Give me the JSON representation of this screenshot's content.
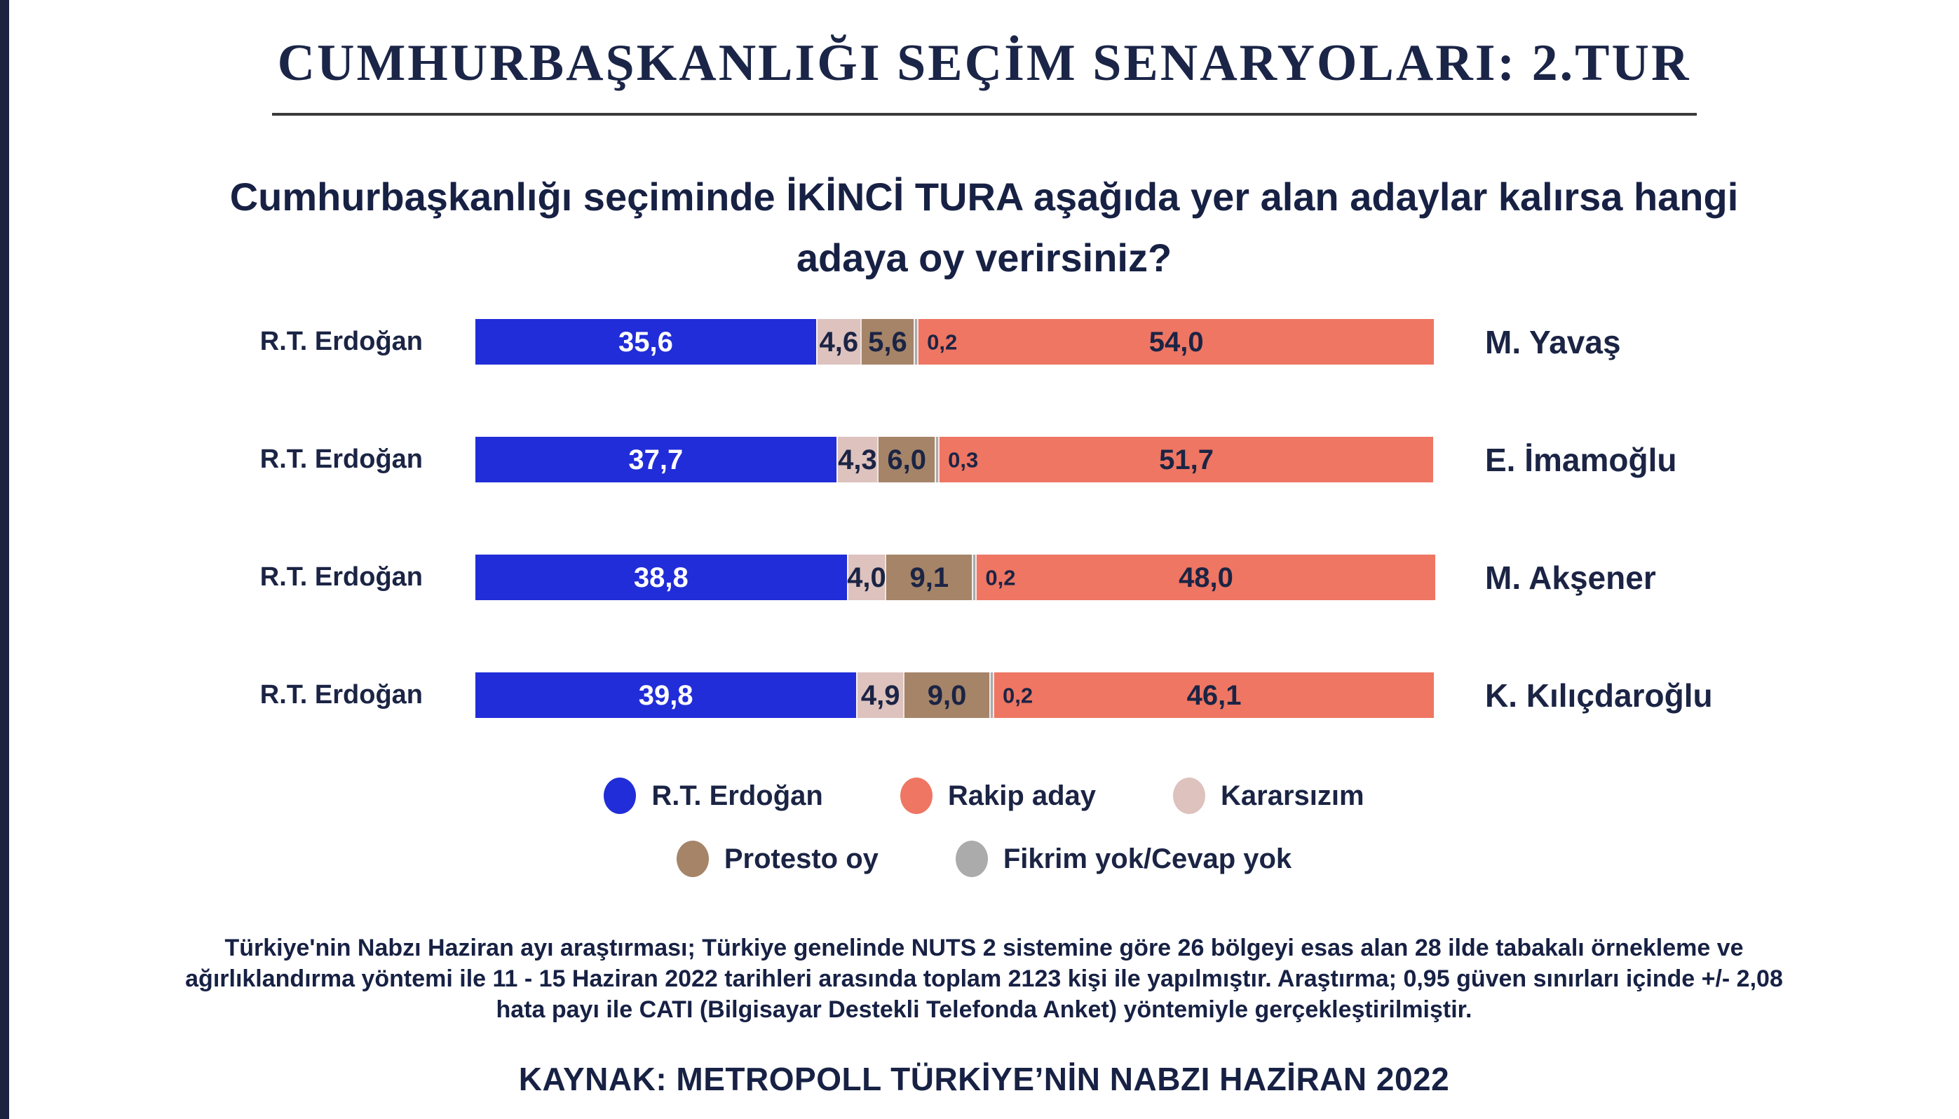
{
  "page": {
    "title": "CUMHURBAŞKANLIĞI SEÇİM SENARYOLARI: 2.TUR",
    "accent_color": "#1b2340",
    "text_color": "#1b2444"
  },
  "chart_data": {
    "type": "bar",
    "orientation": "horizontal",
    "stacked": true,
    "units": "%",
    "title": "Cumhurbaşkanlığı seçiminde İKİNCİ TURA aşağıda yer alan adaylar kalırsa hangi adaya oy verirsiniz?",
    "xlim": [
      0,
      100
    ],
    "grid": false,
    "legend_position": "bottom",
    "palette": {
      "erdogan": "#212dd8",
      "rakip": "#ee7663",
      "kararsiz": "#ddc2be",
      "protesto": "#a58468",
      "fikrim_yok": "#ababab"
    },
    "legend": [
      {
        "key": "erdogan",
        "label": "R.T. Erdoğan"
      },
      {
        "key": "rakip",
        "label": "Rakip aday"
      },
      {
        "key": "kararsiz",
        "label": "Kararsızım"
      },
      {
        "key": "protesto",
        "label": "Protesto oy"
      },
      {
        "key": "fikrim_yok",
        "label": "Fikrim yok/Cevap yok"
      }
    ],
    "legend_rows": [
      [
        0,
        1,
        2
      ],
      [
        3,
        4
      ]
    ],
    "rows": [
      {
        "left_label": "R.T. Erdoğan",
        "right_label": "M. Yavaş",
        "segments": [
          {
            "key": "erdogan",
            "value": 35.6,
            "display": "35,6"
          },
          {
            "key": "kararsiz",
            "value": 4.6,
            "display": "4,6"
          },
          {
            "key": "protesto",
            "value": 5.6,
            "display": "5,6"
          },
          {
            "key": "fikrim_yok",
            "value": 0.2,
            "display": "0,2"
          },
          {
            "key": "rakip",
            "value": 54.0,
            "display": "54,0"
          }
        ]
      },
      {
        "left_label": "R.T. Erdoğan",
        "right_label": "E. İmamoğlu",
        "segments": [
          {
            "key": "erdogan",
            "value": 37.7,
            "display": "37,7"
          },
          {
            "key": "kararsiz",
            "value": 4.3,
            "display": "4,3"
          },
          {
            "key": "protesto",
            "value": 6.0,
            "display": "6,0"
          },
          {
            "key": "fikrim_yok",
            "value": 0.3,
            "display": "0,3"
          },
          {
            "key": "rakip",
            "value": 51.7,
            "display": "51,7"
          }
        ]
      },
      {
        "left_label": "R.T. Erdoğan",
        "right_label": "M. Akşener",
        "segments": [
          {
            "key": "erdogan",
            "value": 38.8,
            "display": "38,8"
          },
          {
            "key": "kararsiz",
            "value": 4.0,
            "display": "4,0"
          },
          {
            "key": "protesto",
            "value": 9.1,
            "display": "9,1"
          },
          {
            "key": "fikrim_yok",
            "value": 0.2,
            "display": "0,2"
          },
          {
            "key": "rakip",
            "value": 48.0,
            "display": "48,0"
          }
        ]
      },
      {
        "left_label": "R.T. Erdoğan",
        "right_label": "K. Kılıçdaroğlu",
        "segments": [
          {
            "key": "erdogan",
            "value": 39.8,
            "display": "39,8"
          },
          {
            "key": "kararsiz",
            "value": 4.9,
            "display": "4,9"
          },
          {
            "key": "protesto",
            "value": 9.0,
            "display": "9,0"
          },
          {
            "key": "fikrim_yok",
            "value": 0.2,
            "display": "0,2"
          },
          {
            "key": "rakip",
            "value": 46.1,
            "display": "46,1"
          }
        ]
      }
    ]
  },
  "footer": {
    "methodology_lines": [
      "Türkiye'nin Nabzı Haziran ayı araştırması; Türkiye genelinde NUTS 2 sistemine göre 26 bölgeyi esas alan 28 ilde tabakalı örnekleme ve",
      "ağırlıklandırma yöntemi ile 11 - 15 Haziran 2022 tarihleri arasında toplam 2123 kişi ile yapılmıştır. Araştırma; 0,95 güven sınırları içinde +/- 2,08",
      "hata payı ile CATI (Bilgisayar Destekli Telefonda Anket) yöntemiyle gerçekleştirilmiştir."
    ],
    "source": "KAYNAK: METROPOLL TÜRKİYE’NİN NABZI HAZİRAN 2022"
  }
}
